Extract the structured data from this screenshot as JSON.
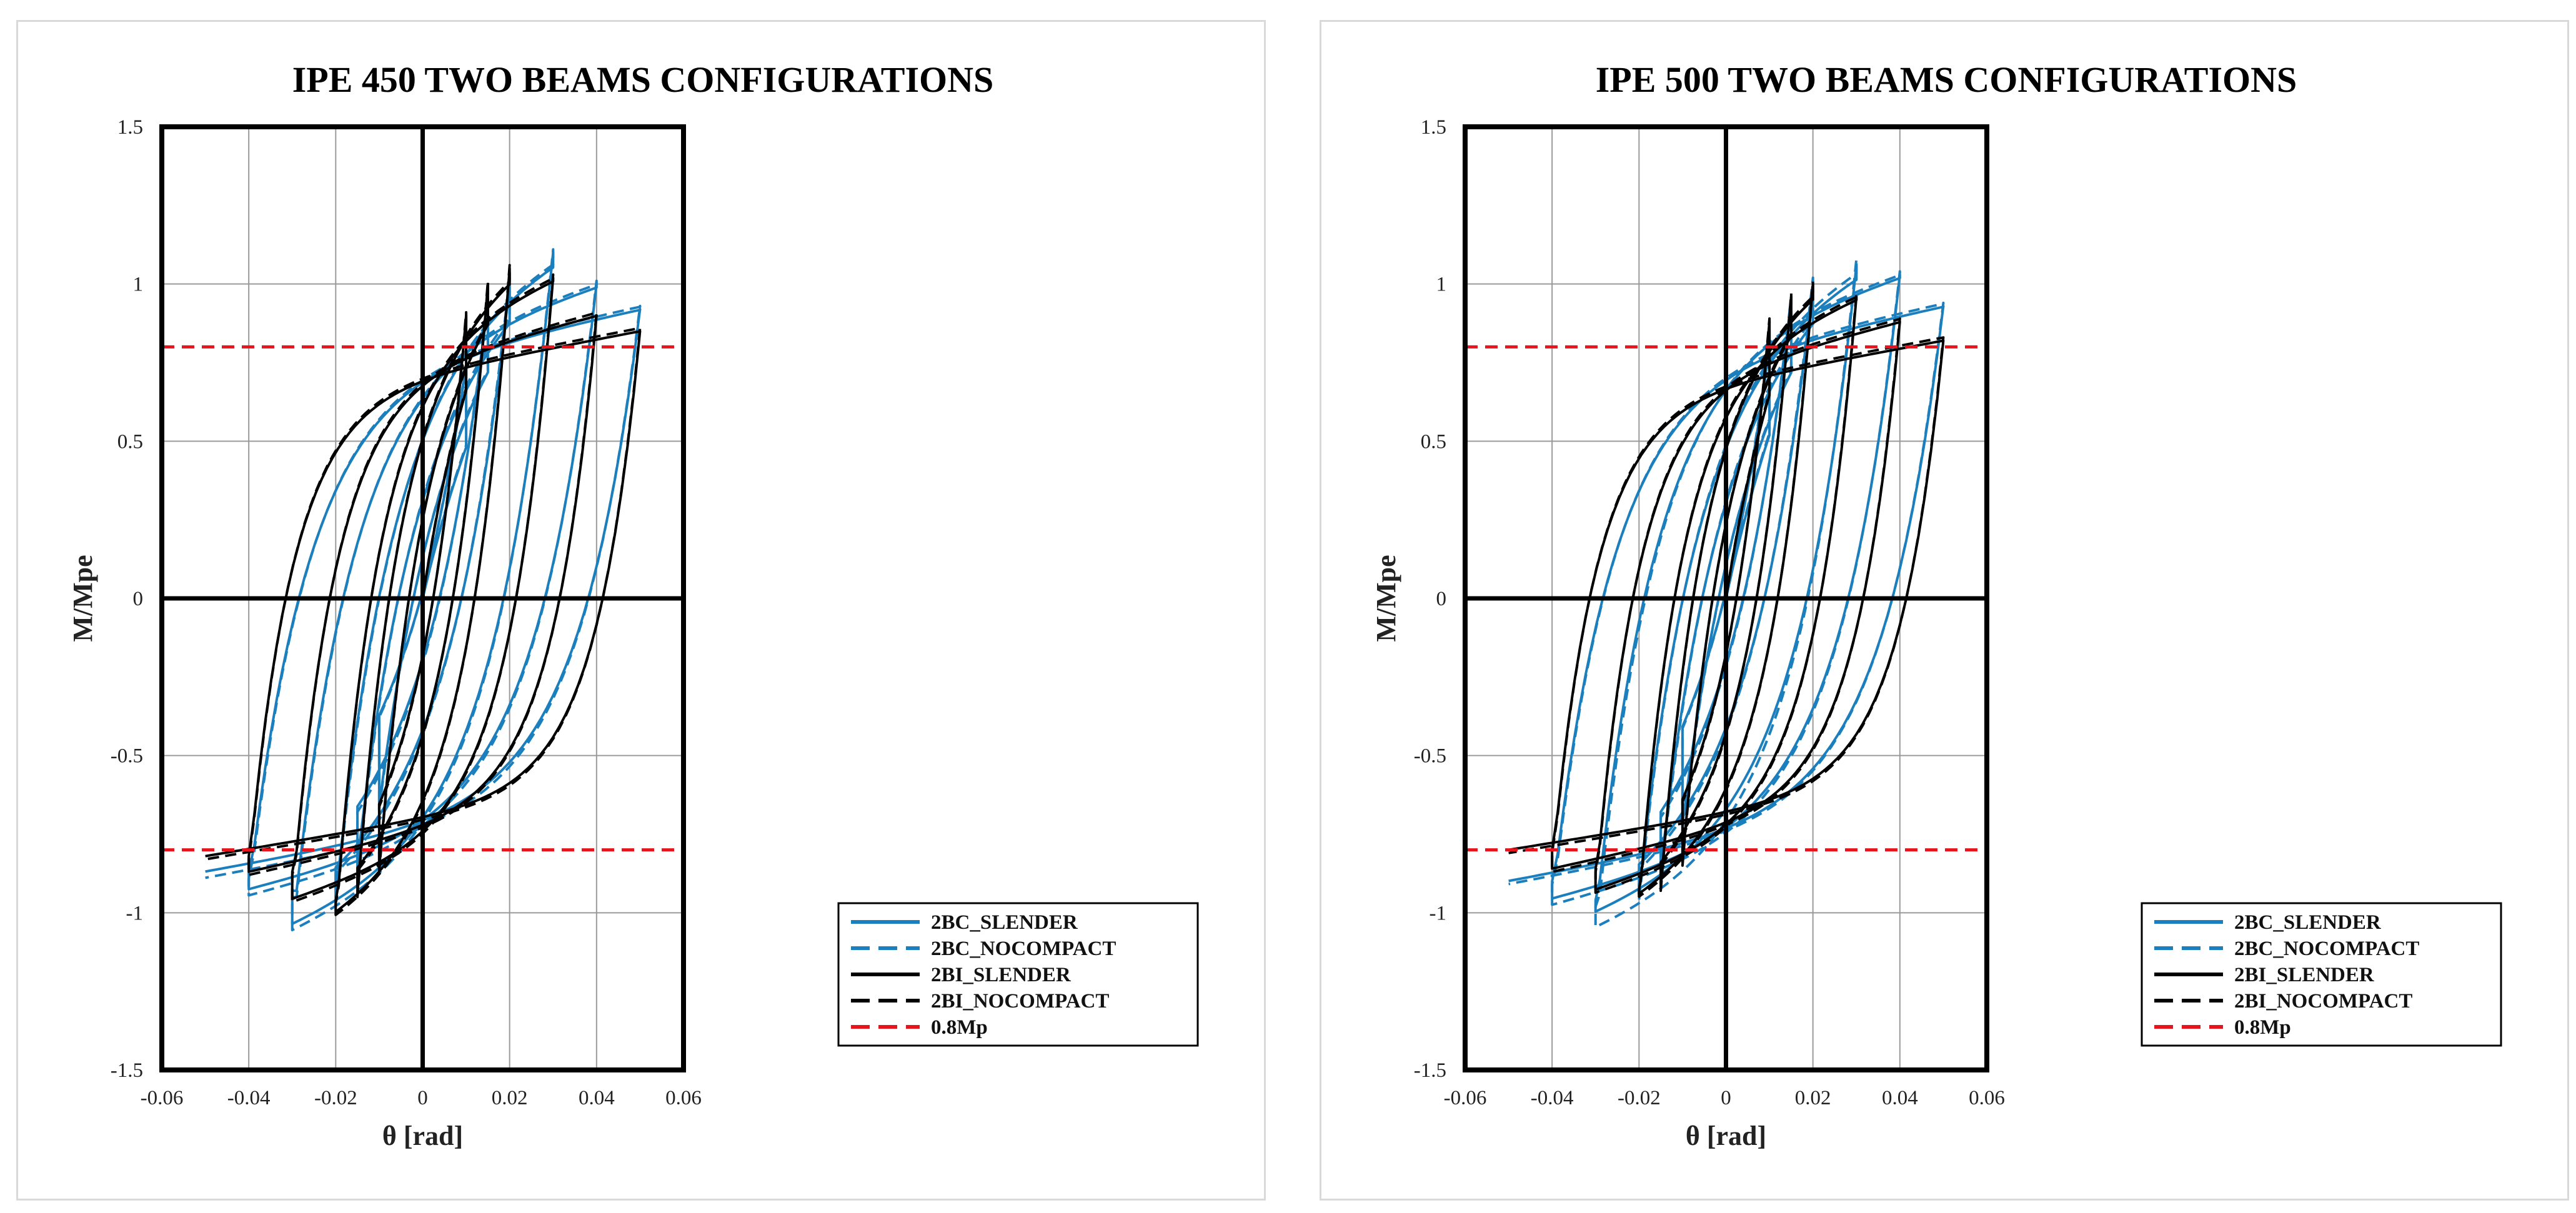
{
  "chart_data": [
    {
      "type": "line",
      "title": "IPE 450 TWO BEAMS CONFIGURATIONS",
      "xlabel": "θ [rad]",
      "ylabel": "M/Mpe",
      "xlim": [
        -0.06,
        0.06
      ],
      "ylim": [
        -1.5,
        1.5
      ],
      "xticks": [
        -0.06,
        -0.04,
        -0.02,
        0,
        0.02,
        0.04,
        0.06
      ],
      "yticks": [
        -1.5,
        -1,
        -0.5,
        0,
        0.5,
        1,
        1.5
      ],
      "xtick_labels": [
        "-0.06",
        "-0.04",
        "-0.02",
        "0",
        "0.02",
        "0.04",
        "0.06"
      ],
      "ytick_labels": [
        "-1.5",
        "-1",
        "-0.5",
        "0",
        "0.5",
        "1",
        "1.5"
      ],
      "grid": true,
      "legend_position": "bottom-right",
      "legend": [
        "2BC_SLENDER",
        "2BC_NOCOMPACT",
        "2BI_SLENDER",
        "2BI_NOCOMPACT",
        "0.8Mp"
      ],
      "series": [
        {
          "name": "2BC_SLENDER",
          "color": "#1b7fbd",
          "style": "solid",
          "cycles": [
            [
              0.01,
              0.74,
              -0.66
            ],
            [
              0.015,
              0.94,
              -0.84
            ],
            [
              0.02,
              1.0,
              -0.95
            ],
            [
              0.03,
              1.1,
              -1.06
            ],
            [
              0.04,
              1.0,
              -0.93
            ],
            [
              0.05,
              0.92,
              -0.87
            ]
          ]
        },
        {
          "name": "2BC_NOCOMPACT",
          "color": "#1b7fbd",
          "style": "dashed",
          "cycles": [
            [
              0.01,
              0.75,
              -0.67
            ],
            [
              0.015,
              0.95,
              -0.86
            ],
            [
              0.02,
              1.02,
              -0.97
            ],
            [
              0.03,
              1.11,
              -1.08
            ],
            [
              0.04,
              1.01,
              -0.95
            ],
            [
              0.05,
              0.93,
              -0.89
            ]
          ]
        },
        {
          "name": "2BI_SLENDER",
          "color": "#000000",
          "style": "solid",
          "cycles": [
            [
              0.01,
              0.9,
              -0.86
            ],
            [
              0.015,
              1.0,
              -0.94
            ],
            [
              0.02,
              1.05,
              -1.03
            ],
            [
              0.03,
              1.02,
              -0.96
            ],
            [
              0.04,
              0.9,
              -0.87
            ],
            [
              0.05,
              0.85,
              -0.82
            ]
          ]
        },
        {
          "name": "2BI_NOCOMPACT",
          "color": "#000000",
          "style": "dashed",
          "cycles": [
            [
              0.01,
              0.91,
              -0.87
            ],
            [
              0.015,
              1.01,
              -0.95
            ],
            [
              0.02,
              1.06,
              -1.04
            ],
            [
              0.03,
              1.03,
              -0.97
            ],
            [
              0.04,
              0.91,
              -0.88
            ],
            [
              0.05,
              0.86,
              -0.83
            ]
          ]
        },
        {
          "name": "0.8Mp",
          "color": "#e8141c",
          "style": "dashed",
          "values": [
            0.8,
            -0.8
          ]
        }
      ]
    },
    {
      "type": "line",
      "title": "IPE 500 TWO BEAMS CONFIGURATIONS",
      "xlabel": "θ [rad]",
      "ylabel": "M/Mpe",
      "xlim": [
        -0.06,
        0.06
      ],
      "ylim": [
        -1.5,
        1.5
      ],
      "xticks": [
        -0.06,
        -0.04,
        -0.02,
        0,
        0.02,
        0.04,
        0.06
      ],
      "yticks": [
        -1.5,
        -1,
        -0.5,
        0,
        0.5,
        1,
        1.5
      ],
      "xtick_labels": [
        "-0.06",
        "-0.04",
        "-0.02",
        "0",
        "0.02",
        "0.04",
        "0.06"
      ],
      "ytick_labels": [
        "-1.5",
        "-1",
        "-0.5",
        "0",
        "0.5",
        "1",
        "1.5"
      ],
      "grid": true,
      "legend_position": "bottom-right",
      "legend": [
        "2BC_SLENDER",
        "2BC_NOCOMPACT",
        "2BI_SLENDER",
        "2BI_NOCOMPACT",
        "0.8Mp"
      ],
      "series": [
        {
          "name": "2BC_SLENDER",
          "color": "#1b7fbd",
          "style": "solid",
          "cycles": [
            [
              0.01,
              0.8,
              -0.72
            ],
            [
              0.015,
              0.95,
              -0.86
            ],
            [
              0.02,
              1.0,
              -0.94
            ],
            [
              0.03,
              1.06,
              -1.02
            ],
            [
              0.04,
              1.03,
              -0.96
            ],
            [
              0.05,
              0.93,
              -0.9
            ]
          ]
        },
        {
          "name": "2BC_NOCOMPACT",
          "color": "#1b7fbd",
          "style": "dashed",
          "cycles": [
            [
              0.01,
              0.81,
              -0.73
            ],
            [
              0.015,
              0.96,
              -0.88
            ],
            [
              0.02,
              1.02,
              -0.96
            ],
            [
              0.03,
              1.08,
              -1.07
            ],
            [
              0.04,
              1.04,
              -0.98
            ],
            [
              0.05,
              0.94,
              -0.91
            ]
          ]
        },
        {
          "name": "2BI_SLENDER",
          "color": "#000000",
          "style": "solid",
          "cycles": [
            [
              0.01,
              0.88,
              -0.84
            ],
            [
              0.015,
              0.96,
              -0.92
            ],
            [
              0.02,
              1.0,
              -0.97
            ],
            [
              0.03,
              0.96,
              -0.93
            ],
            [
              0.04,
              0.88,
              -0.86
            ],
            [
              0.05,
              0.82,
              -0.8
            ]
          ]
        },
        {
          "name": "2BI_NOCOMPACT",
          "color": "#000000",
          "style": "dashed",
          "cycles": [
            [
              0.01,
              0.89,
              -0.85
            ],
            [
              0.015,
              0.97,
              -0.93
            ],
            [
              0.02,
              1.01,
              -0.98
            ],
            [
              0.03,
              0.97,
              -0.94
            ],
            [
              0.04,
              0.89,
              -0.87
            ],
            [
              0.05,
              0.83,
              -0.81
            ]
          ]
        },
        {
          "name": "0.8Mp",
          "color": "#e8141c",
          "style": "dashed",
          "values": [
            0.8,
            -0.8
          ]
        }
      ]
    }
  ]
}
